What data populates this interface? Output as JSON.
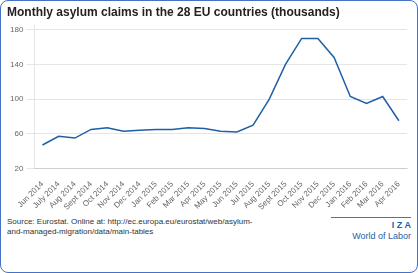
{
  "chart_data": {
    "type": "line",
    "title": "Monthly asylum claims in the 28 EU countries (thousands)",
    "categories": [
      "Jun 2014",
      "July 2014",
      "Aug 2014",
      "Sept 2014",
      "Oct 2014",
      "Nov 2014",
      "Dec 2014",
      "Jan 2015",
      "Feb 2015",
      "Mar 2015",
      "Apr 2015",
      "May 2015",
      "Jun 2015",
      "Jul 2015",
      "Aug 2015",
      "Sept 2015",
      "Oct 2015",
      "Nov 2015",
      "Dec 2015",
      "Jan 2016",
      "Feb 2016",
      "Mar 2016",
      "Apr 2016"
    ],
    "values": [
      47,
      57,
      55,
      65,
      67,
      63,
      64,
      65,
      65,
      67,
      66,
      63,
      62,
      70,
      100,
      140,
      170,
      170,
      148,
      103,
      95,
      103,
      75
    ],
    "color": "#1f5fa6",
    "ylim": [
      20,
      185
    ],
    "yticks": [
      20,
      60,
      100,
      140,
      180
    ],
    "grid": true,
    "annotations": [
      "Source: Eurostat. Online at: http://ec.europa.eu/eurostat/web/asylum-\nand-managed-migration/data/main-tables",
      "I Z A",
      "World of Labor"
    ]
  }
}
